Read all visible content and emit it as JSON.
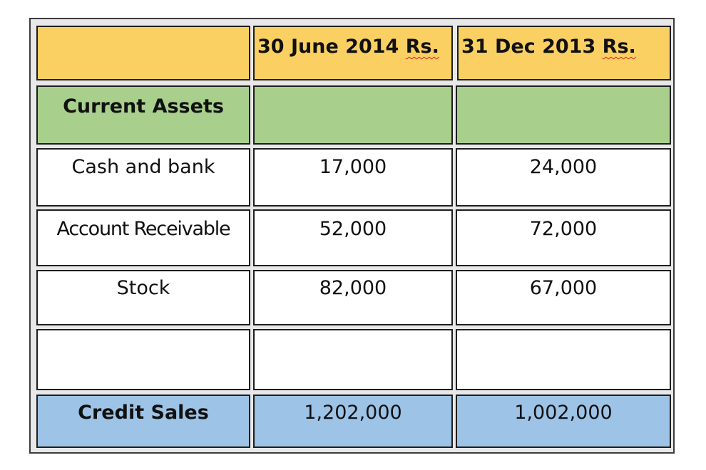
{
  "header": {
    "col1": "",
    "col2_date": "30 June 2014",
    "col2_unit": "Rs.",
    "col3_date": "31 Dec 2013",
    "col3_unit": "Rs."
  },
  "section": {
    "label": "Current Assets",
    "col2": "",
    "col3": ""
  },
  "rows": [
    {
      "label": "Cash and bank",
      "jun2014": "17,000",
      "dec2013": "24,000"
    },
    {
      "label": "Account Receivable",
      "jun2014": "52,000",
      "dec2013": "72,000"
    },
    {
      "label": "Stock",
      "jun2014": "82,000",
      "dec2013": "67,000"
    },
    {
      "label": "",
      "jun2014": "",
      "dec2013": ""
    }
  ],
  "total": {
    "label": "Credit Sales",
    "jun2014": "1,202,000",
    "dec2013": "1,002,000"
  },
  "colors": {
    "header": "#fbd063",
    "section": "#a8d08c",
    "total": "#9dc3e6",
    "body": "#ffffff"
  }
}
